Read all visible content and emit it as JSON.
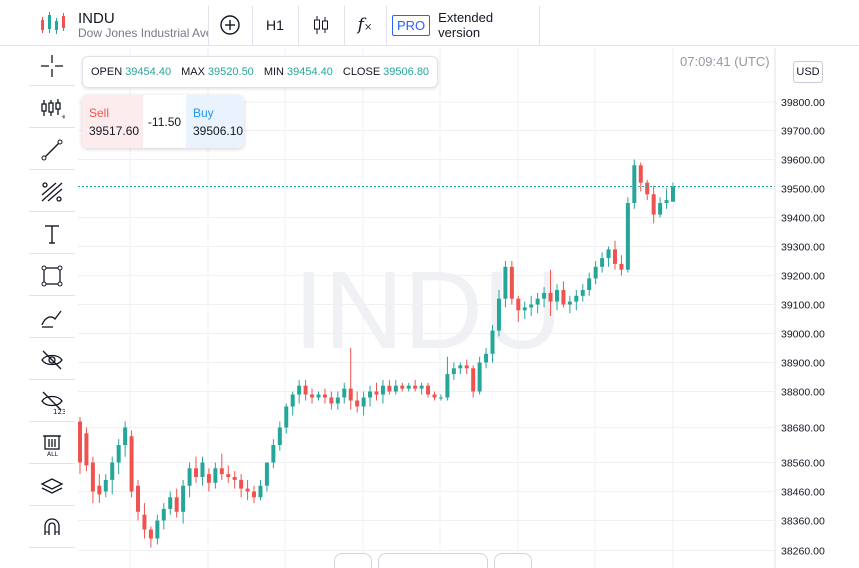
{
  "symbol": {
    "name": "INDU",
    "description": "Dow Jones Industrial Average"
  },
  "toolbar": {
    "interval": "H1",
    "pro_badge": "PRO",
    "extended_label": "Extended version"
  },
  "ohlc": {
    "open_label": "OPEN",
    "open": "39454.40",
    "max_label": "MAX",
    "max": "39520.50",
    "min_label": "MIN",
    "min": "39454.40",
    "close_label": "CLOSE",
    "close": "39506.80"
  },
  "trade": {
    "sell_label": "Sell",
    "sell_price": "39517.60",
    "spread": "-11.50",
    "buy_label": "Buy",
    "buy_price": "39506.10"
  },
  "time": "07:09:41 (UTC)",
  "currency": "USD",
  "watermark": "INDU",
  "colors": {
    "up": "#26a69a",
    "down": "#ef5350",
    "accent": "#2962ff"
  },
  "left_tools": [
    "crosshair-icon",
    "indicators-icon",
    "trend-line-icon",
    "fib-tools-icon",
    "text-icon",
    "rectangle-icon",
    "brush-icon",
    "hide-drawings-icon",
    "hide-indicators-icon",
    "delete-all-icon",
    "layers-icon",
    "magnet-icon"
  ],
  "chart_data": {
    "type": "candlestick",
    "interval": "H1",
    "y_tick_labels": [
      "39800.00",
      "39700.00",
      "39600.00",
      "39500.00",
      "39400.00",
      "39300.00",
      "39200.00",
      "39100.00",
      "39000.00",
      "38900.00",
      "38800.00",
      "38680.00",
      "38560.00",
      "38460.00",
      "38360.00",
      "38260.00"
    ],
    "last_price": 39506.8,
    "candles": [
      [
        38700,
        38715,
        38520,
        38560
      ],
      [
        38660,
        38680,
        38530,
        38550
      ],
      [
        38560,
        38580,
        38420,
        38460
      ],
      [
        38480,
        38520,
        38420,
        38450
      ],
      [
        38460,
        38520,
        38440,
        38500
      ],
      [
        38500,
        38580,
        38450,
        38560
      ],
      [
        38560,
        38640,
        38520,
        38620
      ],
      [
        38620,
        38700,
        38580,
        38680
      ],
      [
        38650,
        38670,
        38440,
        38460
      ],
      [
        38480,
        38500,
        38360,
        38390
      ],
      [
        38380,
        38420,
        38300,
        38330
      ],
      [
        38330,
        38340,
        38270,
        38300
      ],
      [
        38300,
        38380,
        38280,
        38360
      ],
      [
        38360,
        38420,
        38330,
        38400
      ],
      [
        38400,
        38460,
        38380,
        38440
      ],
      [
        38440,
        38470,
        38370,
        38390
      ],
      [
        38390,
        38500,
        38350,
        38480
      ],
      [
        38480,
        38560,
        38440,
        38540
      ],
      [
        38540,
        38580,
        38490,
        38510
      ],
      [
        38510,
        38580,
        38480,
        38560
      ],
      [
        38520,
        38540,
        38460,
        38490
      ],
      [
        38490,
        38560,
        38470,
        38540
      ],
      [
        38540,
        38590,
        38500,
        38520
      ],
      [
        38520,
        38550,
        38490,
        38510
      ],
      [
        38510,
        38530,
        38470,
        38500
      ],
      [
        38500,
        38520,
        38440,
        38470
      ],
      [
        38470,
        38500,
        38430,
        38460
      ],
      [
        38460,
        38480,
        38420,
        38440
      ],
      [
        38440,
        38500,
        38430,
        38480
      ],
      [
        38480,
        38560,
        38460,
        38560
      ],
      [
        38560,
        38640,
        38540,
        38620
      ],
      [
        38620,
        38700,
        38600,
        38680
      ],
      [
        38680,
        38760,
        38660,
        38750
      ],
      [
        38750,
        38800,
        38720,
        38790
      ],
      [
        38790,
        38840,
        38760,
        38820
      ],
      [
        38820,
        38840,
        38770,
        38790
      ],
      [
        38790,
        38810,
        38760,
        38780
      ],
      [
        38780,
        38800,
        38770,
        38790
      ],
      [
        38790,
        38810,
        38760,
        38780
      ],
      [
        38780,
        38800,
        38740,
        38760
      ],
      [
        38760,
        38800,
        38740,
        38780
      ],
      [
        38780,
        38830,
        38760,
        38810
      ],
      [
        38810,
        38950,
        38740,
        38770
      ],
      [
        38770,
        38800,
        38730,
        38750
      ],
      [
        38750,
        38800,
        38720,
        38780
      ],
      [
        38780,
        38820,
        38750,
        38800
      ],
      [
        38800,
        38830,
        38770,
        38790
      ],
      [
        38790,
        38840,
        38760,
        38820
      ],
      [
        38820,
        38840,
        38790,
        38800
      ],
      [
        38800,
        38840,
        38790,
        38820
      ],
      [
        38820,
        38830,
        38800,
        38810
      ],
      [
        38810,
        38830,
        38800,
        38820
      ],
      [
        38820,
        38840,
        38800,
        38810
      ],
      [
        38810,
        38830,
        38790,
        38820
      ],
      [
        38820,
        38830,
        38780,
        38790
      ],
      [
        38790,
        38800,
        38770,
        38780
      ],
      [
        38780,
        38790,
        38770,
        38780
      ],
      [
        38780,
        38920,
        38770,
        38860
      ],
      [
        38860,
        38900,
        38840,
        38880
      ],
      [
        38880,
        38900,
        38860,
        38890
      ],
      [
        38890,
        38910,
        38860,
        38880
      ],
      [
        38880,
        38890,
        38780,
        38800
      ],
      [
        38800,
        38920,
        38790,
        38900
      ],
      [
        38900,
        38950,
        38880,
        38930
      ],
      [
        38930,
        39030,
        38900,
        39010
      ],
      [
        39010,
        39150,
        38990,
        39120
      ],
      [
        39120,
        39250,
        39090,
        39230
      ],
      [
        39230,
        39250,
        39100,
        39120
      ],
      [
        39120,
        39130,
        39040,
        39080
      ],
      [
        39080,
        39110,
        39050,
        39090
      ],
      [
        39090,
        39130,
        39060,
        39100
      ],
      [
        39100,
        39140,
        39070,
        39120
      ],
      [
        39120,
        39160,
        39090,
        39140
      ],
      [
        39140,
        39220,
        39060,
        39110
      ],
      [
        39110,
        39170,
        39080,
        39150
      ],
      [
        39150,
        39180,
        39090,
        39100
      ],
      [
        39100,
        39130,
        39070,
        39110
      ],
      [
        39110,
        39150,
        39080,
        39130
      ],
      [
        39130,
        39170,
        39110,
        39150
      ],
      [
        39150,
        39210,
        39130,
        39190
      ],
      [
        39190,
        39250,
        39170,
        39230
      ],
      [
        39230,
        39280,
        39210,
        39260
      ],
      [
        39260,
        39300,
        39230,
        39290
      ],
      [
        39290,
        39320,
        39220,
        39240
      ],
      [
        39240,
        39270,
        39200,
        39220
      ],
      [
        39220,
        39470,
        39210,
        39450
      ],
      [
        39450,
        39600,
        39430,
        39580
      ],
      [
        39580,
        39590,
        39490,
        39520
      ],
      [
        39520,
        39530,
        39460,
        39480
      ],
      [
        39480,
        39510,
        39380,
        39410
      ],
      [
        39410,
        39470,
        39400,
        39450
      ],
      [
        39450,
        39500,
        39430,
        39460
      ],
      [
        39454.4,
        39520.5,
        39454.4,
        39506.8
      ]
    ]
  }
}
